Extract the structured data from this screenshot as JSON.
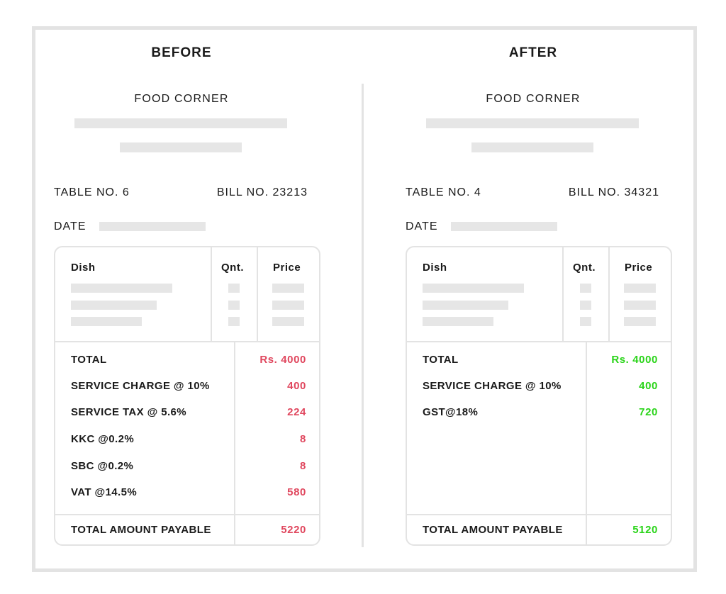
{
  "colors": {
    "before_accent": "#e0475e",
    "after_accent": "#2ad419",
    "border": "#e3e3e3"
  },
  "before": {
    "heading": "BEFORE",
    "restaurant": "FOOD CORNER",
    "table_no": "TABLE NO. 6",
    "bill_no": "BILL NO. 23213",
    "date_label": "DATE",
    "columns": {
      "dish": "Dish",
      "qnt": "Qnt.",
      "price": "Price"
    },
    "rows": [
      {
        "label": "TOTAL",
        "value": "Rs. 4000"
      },
      {
        "label": "SERVICE CHARGE @ 10%",
        "value": "400"
      },
      {
        "label": "SERVICE TAX @ 5.6%",
        "value": "224"
      },
      {
        "label": "KKC @0.2%",
        "value": "8"
      },
      {
        "label": "SBC @0.2%",
        "value": "8"
      },
      {
        "label": "VAT @14.5%",
        "value": "580"
      }
    ],
    "total_label": "TOTAL AMOUNT PAYABLE",
    "total_value": "5220"
  },
  "after": {
    "heading": "AFTER",
    "restaurant": "FOOD CORNER",
    "table_no": "TABLE NO. 4",
    "bill_no": "BILL NO. 34321",
    "date_label": "DATE",
    "columns": {
      "dish": "Dish",
      "qnt": "Qnt.",
      "price": "Price"
    },
    "rows": [
      {
        "label": "TOTAL",
        "value": "Rs. 4000"
      },
      {
        "label": "SERVICE CHARGE @ 10%",
        "value": "400"
      },
      {
        "label": "GST@18%",
        "value": "720"
      }
    ],
    "total_label": "TOTAL AMOUNT PAYABLE",
    "total_value": "5120"
  }
}
